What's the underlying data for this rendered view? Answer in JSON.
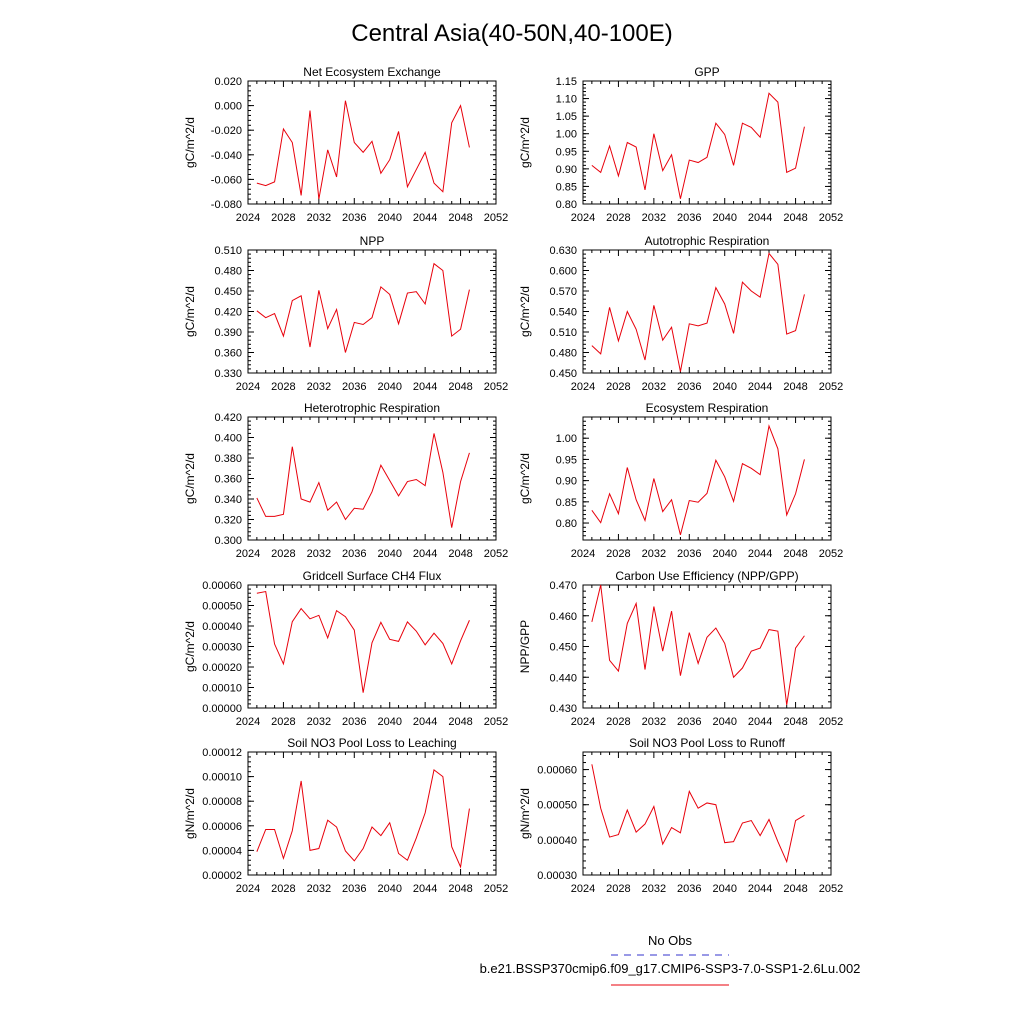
{
  "title": "Central Asia(40-50N,40-100E)",
  "legend": {
    "obs_label": "No Obs",
    "obs_color": "#3333cc",
    "model_label": "b.e21.BSSP370cmip6.f09_g17.CMIP6-SSP3-7.0-SSP1-2.6Lu.002",
    "model_color": "#e8000b"
  },
  "chart_data": [
    {
      "type": "line",
      "title": "Net Ecosystem Exchange",
      "ylabel": "gC/m^2/d",
      "xlim": [
        2024,
        2052
      ],
      "ylim": [
        -0.08,
        0.02
      ],
      "xticks": [
        "2024",
        "2028",
        "2032",
        "2036",
        "2040",
        "2044",
        "2048",
        "2052"
      ],
      "yticks": [
        "-0.080",
        "-0.060",
        "-0.040",
        "-0.020",
        "0.000",
        "0.020"
      ],
      "series": [
        {
          "x": [
            2025,
            2026,
            2027,
            2028,
            2029,
            2030,
            2031,
            2032,
            2033,
            2034,
            2035,
            2036,
            2037,
            2038,
            2039,
            2040,
            2041,
            2042,
            2043,
            2044,
            2045,
            2046,
            2047,
            2048,
            2049
          ],
          "values": [
            -0.063,
            -0.065,
            -0.062,
            -0.019,
            -0.03,
            -0.073,
            -0.004,
            -0.076,
            -0.036,
            -0.058,
            0.004,
            -0.03,
            -0.038,
            -0.029,
            -0.055,
            -0.044,
            -0.021,
            -0.066,
            -0.052,
            -0.038,
            -0.063,
            -0.07,
            -0.014,
            0.0,
            -0.034
          ]
        }
      ]
    },
    {
      "type": "line",
      "title": "GPP",
      "ylabel": "gC/m^2/d",
      "xlim": [
        2024,
        2052
      ],
      "ylim": [
        0.8,
        1.15
      ],
      "xticks": [
        "2024",
        "2028",
        "2032",
        "2036",
        "2040",
        "2044",
        "2048",
        "2052"
      ],
      "yticks": [
        "0.80",
        "0.85",
        "0.90",
        "0.95",
        "1.00",
        "1.05",
        "1.10",
        "1.15"
      ],
      "series": [
        {
          "x": [
            2025,
            2026,
            2027,
            2028,
            2029,
            2030,
            2031,
            2032,
            2033,
            2034,
            2035,
            2036,
            2037,
            2038,
            2039,
            2040,
            2041,
            2042,
            2043,
            2044,
            2045,
            2046,
            2047,
            2048,
            2049
          ],
          "values": [
            0.91,
            0.89,
            0.965,
            0.88,
            0.975,
            0.962,
            0.84,
            1.0,
            0.895,
            0.94,
            0.815,
            0.925,
            0.918,
            0.933,
            1.03,
            0.998,
            0.91,
            1.03,
            1.018,
            0.99,
            1.115,
            1.09,
            0.89,
            0.902,
            1.02
          ]
        }
      ]
    },
    {
      "type": "line",
      "title": "NPP",
      "ylabel": "gC/m^2/d",
      "xlim": [
        2024,
        2052
      ],
      "ylim": [
        0.33,
        0.51
      ],
      "xticks": [
        "2024",
        "2028",
        "2032",
        "2036",
        "2040",
        "2044",
        "2048",
        "2052"
      ],
      "yticks": [
        "0.330",
        "0.360",
        "0.390",
        "0.420",
        "0.450",
        "0.480",
        "0.510"
      ],
      "series": [
        {
          "x": [
            2025,
            2026,
            2027,
            2028,
            2029,
            2030,
            2031,
            2032,
            2033,
            2034,
            2035,
            2036,
            2037,
            2038,
            2039,
            2040,
            2041,
            2042,
            2043,
            2044,
            2045,
            2046,
            2047,
            2048,
            2049
          ],
          "values": [
            0.421,
            0.411,
            0.417,
            0.384,
            0.436,
            0.443,
            0.368,
            0.451,
            0.395,
            0.423,
            0.36,
            0.404,
            0.401,
            0.411,
            0.456,
            0.445,
            0.402,
            0.447,
            0.449,
            0.431,
            0.49,
            0.48,
            0.384,
            0.394,
            0.452
          ]
        }
      ]
    },
    {
      "type": "line",
      "title": "Autotrophic Respiration",
      "ylabel": "gC/m^2/d",
      "xlim": [
        2024,
        2052
      ],
      "ylim": [
        0.45,
        0.63
      ],
      "xticks": [
        "2024",
        "2028",
        "2032",
        "2036",
        "2040",
        "2044",
        "2048",
        "2052"
      ],
      "yticks": [
        "0.450",
        "0.480",
        "0.510",
        "0.540",
        "0.570",
        "0.600",
        "0.630"
      ],
      "series": [
        {
          "x": [
            2025,
            2026,
            2027,
            2028,
            2029,
            2030,
            2031,
            2032,
            2033,
            2034,
            2035,
            2036,
            2037,
            2038,
            2039,
            2040,
            2041,
            2042,
            2043,
            2044,
            2045,
            2046,
            2047,
            2048,
            2049
          ],
          "values": [
            0.49,
            0.478,
            0.546,
            0.497,
            0.54,
            0.514,
            0.469,
            0.549,
            0.498,
            0.517,
            0.452,
            0.522,
            0.519,
            0.523,
            0.575,
            0.551,
            0.508,
            0.583,
            0.57,
            0.561,
            0.625,
            0.609,
            0.507,
            0.512,
            0.565
          ]
        }
      ]
    },
    {
      "type": "line",
      "title": "Heterotrophic Respiration",
      "ylabel": "gC/m^2/d",
      "xlim": [
        2024,
        2052
      ],
      "ylim": [
        0.3,
        0.42
      ],
      "xticks": [
        "2024",
        "2028",
        "2032",
        "2036",
        "2040",
        "2044",
        "2048",
        "2052"
      ],
      "yticks": [
        "0.300",
        "0.320",
        "0.340",
        "0.360",
        "0.380",
        "0.400",
        "0.420"
      ],
      "series": [
        {
          "x": [
            2025,
            2026,
            2027,
            2028,
            2029,
            2030,
            2031,
            2032,
            2033,
            2034,
            2035,
            2036,
            2037,
            2038,
            2039,
            2040,
            2041,
            2042,
            2043,
            2044,
            2045,
            2046,
            2047,
            2048,
            2049
          ],
          "values": [
            0.341,
            0.323,
            0.323,
            0.325,
            0.391,
            0.34,
            0.337,
            0.356,
            0.329,
            0.337,
            0.32,
            0.331,
            0.33,
            0.347,
            0.373,
            0.358,
            0.343,
            0.357,
            0.359,
            0.353,
            0.404,
            0.366,
            0.312,
            0.357,
            0.385
          ]
        }
      ]
    },
    {
      "type": "line",
      "title": "Ecosystem Respiration",
      "ylabel": "gC/m^2/d",
      "xlim": [
        2024,
        2052
      ],
      "ylim": [
        0.76,
        1.05
      ],
      "xticks": [
        "2024",
        "2028",
        "2032",
        "2036",
        "2040",
        "2044",
        "2048",
        "2052"
      ],
      "yticks": [
        "0.80",
        "0.85",
        "0.90",
        "0.95",
        "1.00"
      ],
      "series": [
        {
          "x": [
            2025,
            2026,
            2027,
            2028,
            2029,
            2030,
            2031,
            2032,
            2033,
            2034,
            2035,
            2036,
            2037,
            2038,
            2039,
            2040,
            2041,
            2042,
            2043,
            2044,
            2045,
            2046,
            2047,
            2048,
            2049
          ],
          "values": [
            0.83,
            0.801,
            0.869,
            0.822,
            0.931,
            0.855,
            0.806,
            0.905,
            0.827,
            0.855,
            0.772,
            0.853,
            0.849,
            0.87,
            0.948,
            0.909,
            0.851,
            0.94,
            0.929,
            0.914,
            1.029,
            0.975,
            0.819,
            0.869,
            0.95
          ]
        }
      ]
    },
    {
      "type": "line",
      "title": "Gridcell Surface CH4 Flux",
      "ylabel": "gC/m^2/d",
      "xlim": [
        2024,
        2052
      ],
      "ylim": [
        0.0,
        0.0006
      ],
      "xticks": [
        "2024",
        "2028",
        "2032",
        "2036",
        "2040",
        "2044",
        "2048",
        "2052"
      ],
      "yticks": [
        "0.00000",
        "0.00010",
        "0.00020",
        "0.00030",
        "0.00040",
        "0.00050",
        "0.00060"
      ],
      "series": [
        {
          "x": [
            2025,
            2026,
            2027,
            2028,
            2029,
            2030,
            2031,
            2032,
            2033,
            2034,
            2035,
            2036,
            2037,
            2038,
            2039,
            2040,
            2041,
            2042,
            2043,
            2044,
            2045,
            2046,
            2047,
            2048,
            2049
          ],
          "values": [
            0.00056,
            0.000568,
            0.000312,
            0.000215,
            0.000421,
            0.000485,
            0.000435,
            0.000452,
            0.000342,
            0.000475,
            0.000445,
            0.00038,
            7.5e-05,
            0.000318,
            0.000418,
            0.000335,
            0.000325,
            0.00042,
            0.000375,
            0.000308,
            0.000365,
            0.000315,
            0.000215,
            0.000328,
            0.000428
          ]
        }
      ]
    },
    {
      "type": "line",
      "title": "Carbon Use Efficiency (NPP/GPP)",
      "ylabel": "NPP/GPP",
      "xlim": [
        2024,
        2052
      ],
      "ylim": [
        0.43,
        0.47
      ],
      "xticks": [
        "2024",
        "2028",
        "2032",
        "2036",
        "2040",
        "2044",
        "2048",
        "2052"
      ],
      "yticks": [
        "0.430",
        "0.440",
        "0.450",
        "0.460",
        "0.470"
      ],
      "series": [
        {
          "x": [
            2025,
            2026,
            2027,
            2028,
            2029,
            2030,
            2031,
            2032,
            2033,
            2034,
            2035,
            2036,
            2037,
            2038,
            2039,
            2040,
            2041,
            2042,
            2043,
            2044,
            2045,
            2046,
            2047,
            2048,
            2049
          ],
          "values": [
            0.458,
            0.47,
            0.4455,
            0.442,
            0.4575,
            0.464,
            0.4425,
            0.463,
            0.4485,
            0.4615,
            0.4405,
            0.4545,
            0.4445,
            0.453,
            0.456,
            0.451,
            0.44,
            0.443,
            0.4485,
            0.4495,
            0.4555,
            0.455,
            0.431,
            0.4495,
            0.4535
          ]
        }
      ]
    },
    {
      "type": "line",
      "title": "Soil NO3 Pool Loss to Leaching",
      "ylabel": "gN/m^2/d",
      "xlim": [
        2024,
        2052
      ],
      "ylim": [
        2e-05,
        0.00012
      ],
      "xticks": [
        "2024",
        "2028",
        "2032",
        "2036",
        "2040",
        "2044",
        "2048",
        "2052"
      ],
      "yticks": [
        "0.00002",
        "0.00004",
        "0.00006",
        "0.00008",
        "0.00010",
        "0.00012"
      ],
      "series": [
        {
          "x": [
            2025,
            2026,
            2027,
            2028,
            2029,
            2030,
            2031,
            2032,
            2033,
            2034,
            2035,
            2036,
            2037,
            2038,
            2039,
            2040,
            2041,
            2042,
            2043,
            2044,
            2045,
            2046,
            2047,
            2048,
            2049
          ],
          "values": [
            3.9e-05,
            5.7e-05,
            5.7e-05,
            3.35e-05,
            5.6e-05,
            9.65e-05,
            4e-05,
            4.15e-05,
            6.45e-05,
            5.9e-05,
            3.95e-05,
            3.15e-05,
            4.15e-05,
            5.9e-05,
            5.2e-05,
            6.25e-05,
            3.75e-05,
            3.2e-05,
            5e-05,
            7.05e-05,
            0.0001055,
            0.0001,
            4.3e-05,
            2.65e-05,
            7.4e-05
          ]
        }
      ]
    },
    {
      "type": "line",
      "title": "Soil NO3 Pool Loss to Runoff",
      "ylabel": "gN/m^2/d",
      "xlim": [
        2024,
        2052
      ],
      "ylim": [
        0.0003,
        0.00065
      ],
      "xticks": [
        "2024",
        "2028",
        "2032",
        "2036",
        "2040",
        "2044",
        "2048",
        "2052"
      ],
      "yticks": [
        "0.00030",
        "0.00040",
        "0.00050",
        "0.00060"
      ],
      "series": [
        {
          "x": [
            2025,
            2026,
            2027,
            2028,
            2029,
            2030,
            2031,
            2032,
            2033,
            2034,
            2035,
            2036,
            2037,
            2038,
            2039,
            2040,
            2041,
            2042,
            2043,
            2044,
            2045,
            2046,
            2047,
            2048,
            2049
          ],
          "values": [
            0.000615,
            0.00049,
            0.000408,
            0.000415,
            0.000485,
            0.000422,
            0.000445,
            0.000495,
            0.000388,
            0.000435,
            0.00042,
            0.000538,
            0.00049,
            0.000505,
            0.0005,
            0.000392,
            0.000395,
            0.000448,
            0.000455,
            0.000412,
            0.000458,
            0.000395,
            0.000338,
            0.000455,
            0.00047
          ]
        }
      ]
    }
  ]
}
